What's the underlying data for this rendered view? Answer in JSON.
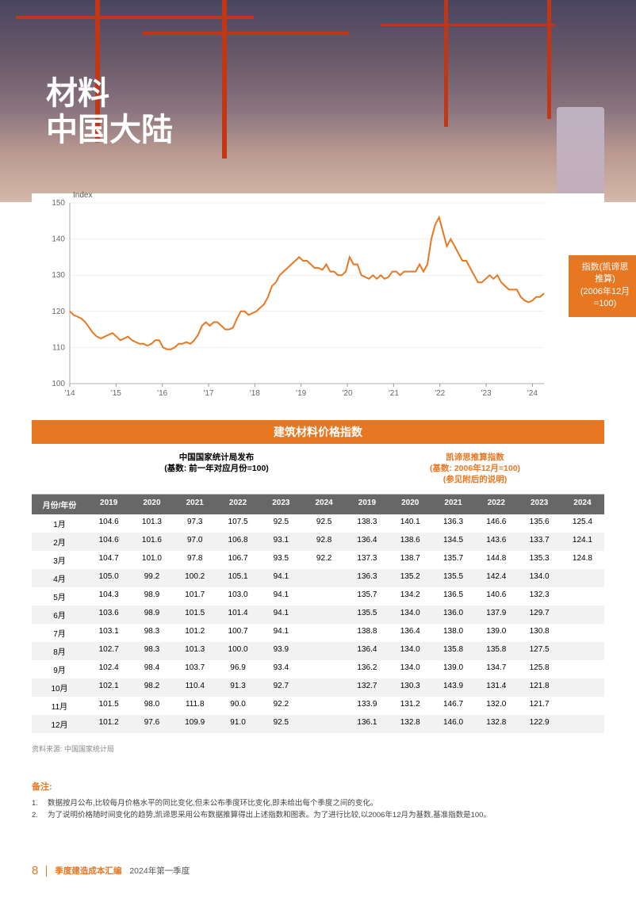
{
  "title": {
    "line1": "材料",
    "line2": "中国大陆"
  },
  "chart": {
    "type": "line",
    "yaxis_label": "Index",
    "ylim": [
      100,
      150
    ],
    "ytick_step": 10,
    "yticks": [
      100,
      110,
      120,
      130,
      140,
      150
    ],
    "xlim": [
      2014,
      2024.25
    ],
    "xticks": [
      "'14",
      "'15",
      "'16",
      "'17",
      "'18",
      "'19",
      "'20",
      "'21",
      "'22",
      "'23",
      "'24"
    ],
    "line_color": "#e87722",
    "line_width": 2,
    "grid_color": "#e0e0e0",
    "axis_color": "#999",
    "background": "#ffffff",
    "label_box": {
      "line1": "指数(凯谛思",
      "line2": "推算)",
      "line3": "(2006年12月",
      "line4": "=100)"
    },
    "series": [
      120,
      119,
      118.5,
      118,
      117,
      115.5,
      114,
      113,
      112.5,
      113,
      113.5,
      114,
      113,
      112,
      112.5,
      113,
      112,
      111.5,
      111,
      111,
      110.5,
      111,
      112,
      112,
      110,
      109.5,
      109.5,
      110,
      111,
      111,
      111.5,
      111,
      112,
      113.5,
      116,
      117,
      116,
      117,
      117,
      116,
      115,
      115,
      115.5,
      118,
      120,
      120,
      119,
      119.5,
      120,
      121,
      122,
      124,
      127,
      128,
      130,
      131,
      132,
      133,
      134,
      135,
      134,
      134,
      133,
      132,
      132,
      131.5,
      133,
      131,
      131,
      130,
      130,
      131,
      135,
      133,
      133,
      130,
      129.5,
      129,
      130,
      129,
      130,
      129,
      129.5,
      131,
      131,
      130,
      131,
      131,
      131,
      131,
      133,
      131,
      133,
      140,
      144,
      146,
      142,
      138,
      140,
      138,
      136,
      134,
      134,
      132,
      130,
      128,
      128,
      129,
      130,
      129,
      130,
      128,
      127,
      126,
      126,
      126,
      124,
      123,
      122.5,
      123,
      124,
      124,
      125
    ]
  },
  "table": {
    "title": "建筑材料价格指数",
    "colgroup_left": {
      "l1": "中国国家统计局发布",
      "l2": "(基数: 前一年对应月份=100)"
    },
    "colgroup_right": {
      "l1": "凯谛思推算指数",
      "l2": "(基数: 2006年12月=100)",
      "l3": "(参见附后的说明)"
    },
    "col0": "月份/年份",
    "years": [
      "2019",
      "2020",
      "2021",
      "2022",
      "2023",
      "2024"
    ],
    "rows": [
      {
        "m": "1月",
        "a": [
          "104.6",
          "101.3",
          "97.3",
          "107.5",
          "92.5",
          "92.5"
        ],
        "b": [
          "138.3",
          "140.1",
          "136.3",
          "146.6",
          "135.6",
          "125.4"
        ]
      },
      {
        "m": "2月",
        "a": [
          "104.6",
          "101.6",
          "97.0",
          "106.8",
          "93.1",
          "92.8"
        ],
        "b": [
          "136.4",
          "138.6",
          "134.5",
          "143.6",
          "133.7",
          "124.1"
        ]
      },
      {
        "m": "3月",
        "a": [
          "104.7",
          "101.0",
          "97.8",
          "106.7",
          "93.5",
          "92.2"
        ],
        "b": [
          "137.3",
          "138.7",
          "135.7",
          "144.8",
          "135.3",
          "124.8"
        ]
      },
      {
        "m": "4月",
        "a": [
          "105.0",
          "99.2",
          "100.2",
          "105.1",
          "94.1",
          ""
        ],
        "b": [
          "136.3",
          "135.2",
          "135.5",
          "142.4",
          "134.0",
          ""
        ]
      },
      {
        "m": "5月",
        "a": [
          "104.3",
          "98.9",
          "101.7",
          "103.0",
          "94.1",
          ""
        ],
        "b": [
          "135.7",
          "134.2",
          "136.5",
          "140.6",
          "132.3",
          ""
        ]
      },
      {
        "m": "6月",
        "a": [
          "103.6",
          "98.9",
          "101.5",
          "101.4",
          "94.1",
          ""
        ],
        "b": [
          "135.5",
          "134.0",
          "136.0",
          "137.9",
          "129.7",
          ""
        ]
      },
      {
        "m": "7月",
        "a": [
          "103.1",
          "98.3",
          "101.2",
          "100.7",
          "94.1",
          ""
        ],
        "b": [
          "138.8",
          "136.4",
          "138.0",
          "139.0",
          "130.8",
          ""
        ]
      },
      {
        "m": "8月",
        "a": [
          "102.7",
          "98.3",
          "101.3",
          "100.0",
          "93.9",
          ""
        ],
        "b": [
          "136.4",
          "134.0",
          "135.8",
          "135.8",
          "127.5",
          ""
        ]
      },
      {
        "m": "9月",
        "a": [
          "102.4",
          "98.4",
          "103.7",
          "96.9",
          "93.4",
          ""
        ],
        "b": [
          "136.2",
          "134.0",
          "139.0",
          "134.7",
          "125.8",
          ""
        ]
      },
      {
        "m": "10月",
        "a": [
          "102.1",
          "98.2",
          "110.4",
          "91.3",
          "92.7",
          ""
        ],
        "b": [
          "132.7",
          "130.3",
          "143.9",
          "131.4",
          "121.8",
          ""
        ]
      },
      {
        "m": "11月",
        "a": [
          "101.5",
          "98.0",
          "111.8",
          "90.0",
          "92.2",
          ""
        ],
        "b": [
          "133.9",
          "131.2",
          "146.7",
          "132.0",
          "121.7",
          ""
        ]
      },
      {
        "m": "12月",
        "a": [
          "101.2",
          "97.6",
          "109.9",
          "91.0",
          "92.5",
          ""
        ],
        "b": [
          "136.1",
          "132.8",
          "146.0",
          "132.8",
          "122.9",
          ""
        ]
      }
    ]
  },
  "source": "资料来源: 中国国家统计局",
  "notes": {
    "title": "备注:",
    "items": [
      "数据按月公布,比较每月价格水平的同比变化,但未公布季度环比变化,即未给出每个季度之间的变化。",
      "为了说明价格随时间变化的趋势,凯谛思采用公布数据推算得出上述指数和图表。为了进行比较,以2006年12月为基数,基准指数是100。"
    ]
  },
  "footer": {
    "page": "8",
    "t1": "季度建造成本汇编",
    "t2": "2024年第一季度"
  }
}
